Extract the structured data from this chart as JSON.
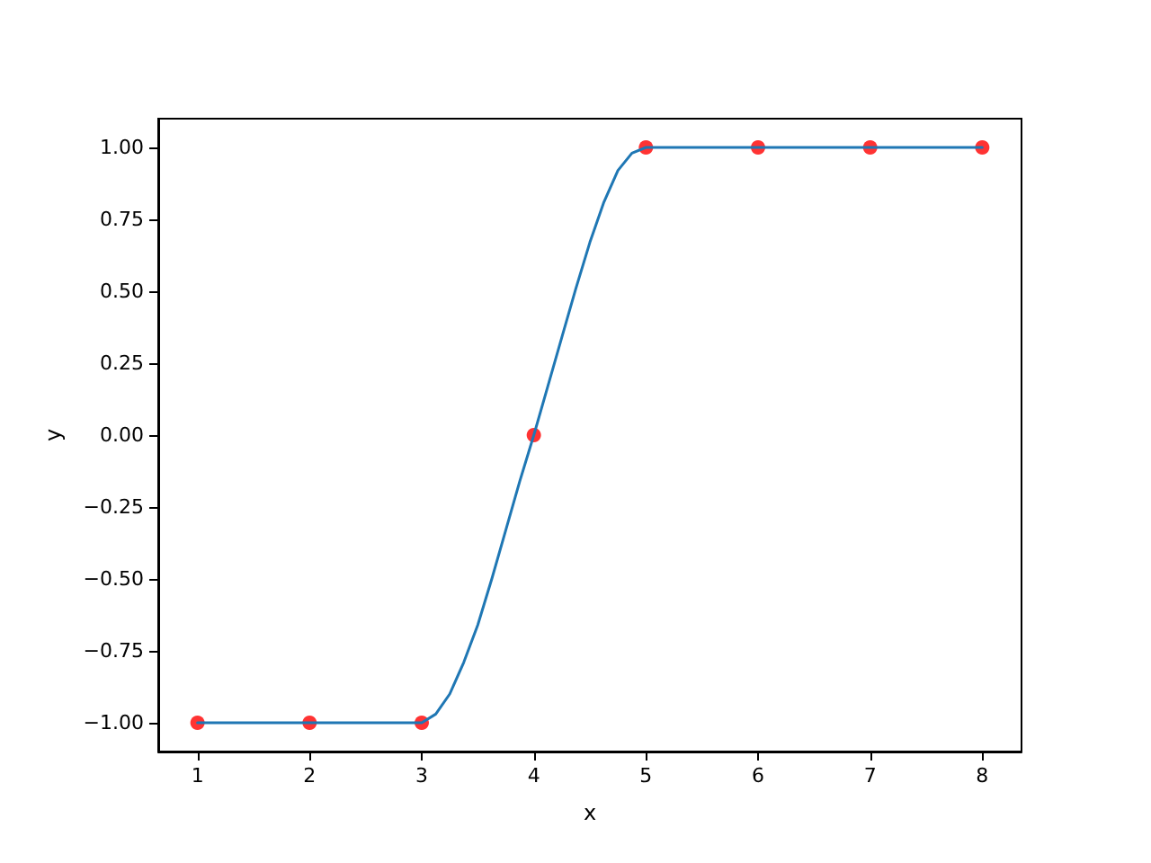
{
  "chart_data": {
    "type": "line",
    "xlabel": "x",
    "ylabel": "y",
    "xlim": [
      0.65,
      8.35
    ],
    "ylim": [
      -1.1,
      1.1
    ],
    "xticks": [
      1,
      2,
      3,
      4,
      5,
      6,
      7,
      8
    ],
    "yticks": [
      {
        "value": -1,
        "label": "−1.00"
      },
      {
        "value": -0.75,
        "label": "−0.75"
      },
      {
        "value": -0.5,
        "label": "−0.50"
      },
      {
        "value": -0.25,
        "label": "−0.25"
      },
      {
        "value": 0,
        "label": "0.00"
      },
      {
        "value": 0.25,
        "label": "0.25"
      },
      {
        "value": 0.5,
        "label": "0.50"
      },
      {
        "value": 0.75,
        "label": "0.75"
      },
      {
        "value": 1,
        "label": "1.00"
      }
    ],
    "grid": false,
    "series": [
      {
        "color": "#1f77b4",
        "marker": "none",
        "line_style": "solid",
        "x": [
          1,
          2,
          3,
          3.125,
          3.25,
          3.375,
          3.5,
          3.625,
          3.75,
          3.875,
          4,
          4.125,
          4.25,
          4.375,
          4.5,
          4.625,
          4.75,
          4.875,
          5,
          6,
          7,
          8
        ],
        "values": [
          -1,
          -1,
          -1,
          -0.97,
          -0.9,
          -0.79,
          -0.66,
          -0.5,
          -0.33,
          -0.16,
          0,
          0.17,
          0.34,
          0.51,
          0.67,
          0.81,
          0.92,
          0.98,
          1,
          1,
          1,
          1
        ]
      },
      {
        "type": "scatter",
        "color": "#ff0000",
        "marker": "circle",
        "x": [
          1,
          2,
          3,
          4,
          5,
          6,
          7,
          8
        ],
        "values": [
          -1,
          -1,
          -1,
          0,
          1,
          1,
          1,
          1
        ]
      }
    ]
  }
}
